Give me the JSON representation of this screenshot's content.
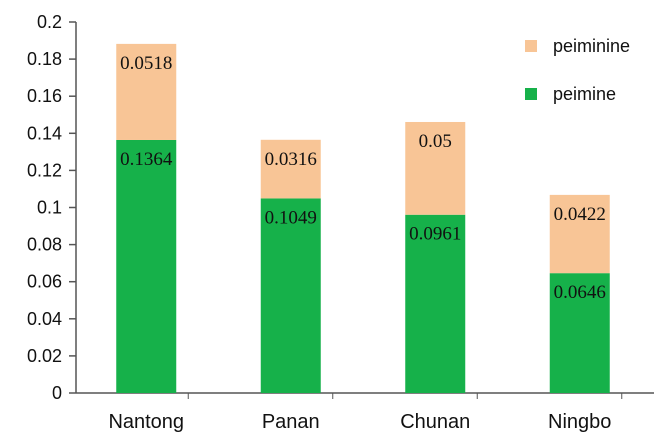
{
  "chart_data": {
    "type": "bar",
    "stacked": true,
    "categories": [
      "Nantong",
      "Panan",
      "Chunan",
      "Ningbo"
    ],
    "series": [
      {
        "name": "peimine",
        "values": [
          0.1364,
          0.1049,
          0.0961,
          0.0646
        ],
        "labels": [
          "0.1364",
          "0.1049",
          "0.0961",
          "0.0646"
        ],
        "color": "#16b14a"
      },
      {
        "name": "peiminine",
        "values": [
          0.0518,
          0.0316,
          0.05,
          0.0422
        ],
        "labels": [
          "0.0518",
          "0.0316",
          "0.05",
          "0.0422"
        ],
        "color": "#f8c596"
      }
    ],
    "yticks": [
      "0",
      "0.02",
      "0.04",
      "0.06",
      "0.08",
      "0.1",
      "0.12",
      "0.14",
      "0.16",
      "0.18",
      "0.2"
    ],
    "ylim": [
      0,
      0.2
    ],
    "title": "",
    "xlabel": "",
    "ylabel": "",
    "grid": false,
    "legend": {
      "placement": "top-right",
      "order": [
        "peiminine",
        "peimine"
      ]
    }
  }
}
